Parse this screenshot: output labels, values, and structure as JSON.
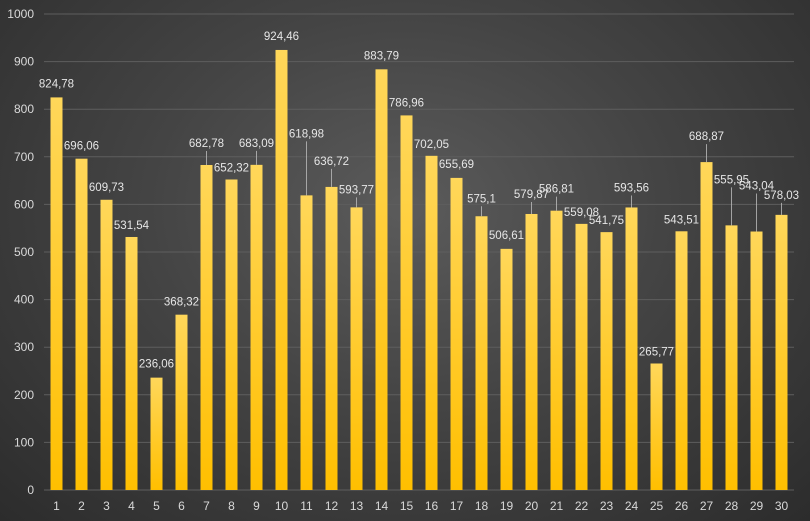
{
  "chart_data": {
    "type": "bar",
    "title": "",
    "xlabel": "",
    "ylabel": "",
    "categories": [
      "1",
      "2",
      "3",
      "4",
      "5",
      "6",
      "7",
      "8",
      "9",
      "10",
      "11",
      "12",
      "13",
      "14",
      "15",
      "16",
      "17",
      "18",
      "19",
      "20",
      "21",
      "22",
      "23",
      "24",
      "25",
      "26",
      "27",
      "28",
      "29",
      "30"
    ],
    "values": [
      824.78,
      696.06,
      609.73,
      531.54,
      236.06,
      368.32,
      682.78,
      652.32,
      683.09,
      924.46,
      618.98,
      636.72,
      593.77,
      883.79,
      786.96,
      702.05,
      655.69,
      575.1,
      506.61,
      579.87,
      586.81,
      559.08,
      541.75,
      593.56,
      265.77,
      543.51,
      688.87,
      555.95,
      543.04,
      578.03
    ],
    "data_labels": [
      "824,78",
      "696,06",
      "609,73",
      "531,54",
      "236,06",
      "368,32",
      "682,78",
      "652,32",
      "683,09",
      "924,46",
      "618,98",
      "636,72",
      "593,77",
      "883,79",
      "786,96",
      "702,05",
      "655,69",
      "575,1",
      "506,61",
      "579,87",
      "586,81",
      "559,08",
      "541,75",
      "593,56",
      "265,77",
      "543,51",
      "688,87",
      "555,95",
      "543,04",
      "578,03"
    ],
    "y_ticks": [
      "0",
      "100",
      "200",
      "300",
      "400",
      "500",
      "600",
      "700",
      "800",
      "900",
      "1000"
    ],
    "ylim": [
      0,
      1000
    ],
    "grid": true,
    "legend": "none",
    "colors": {
      "bar_top": "#ffd75a",
      "bar_bottom": "#ffbf00",
      "background": "#3c3c3c",
      "grid": "#5e5e5e",
      "text": "#d9d9d9"
    }
  }
}
